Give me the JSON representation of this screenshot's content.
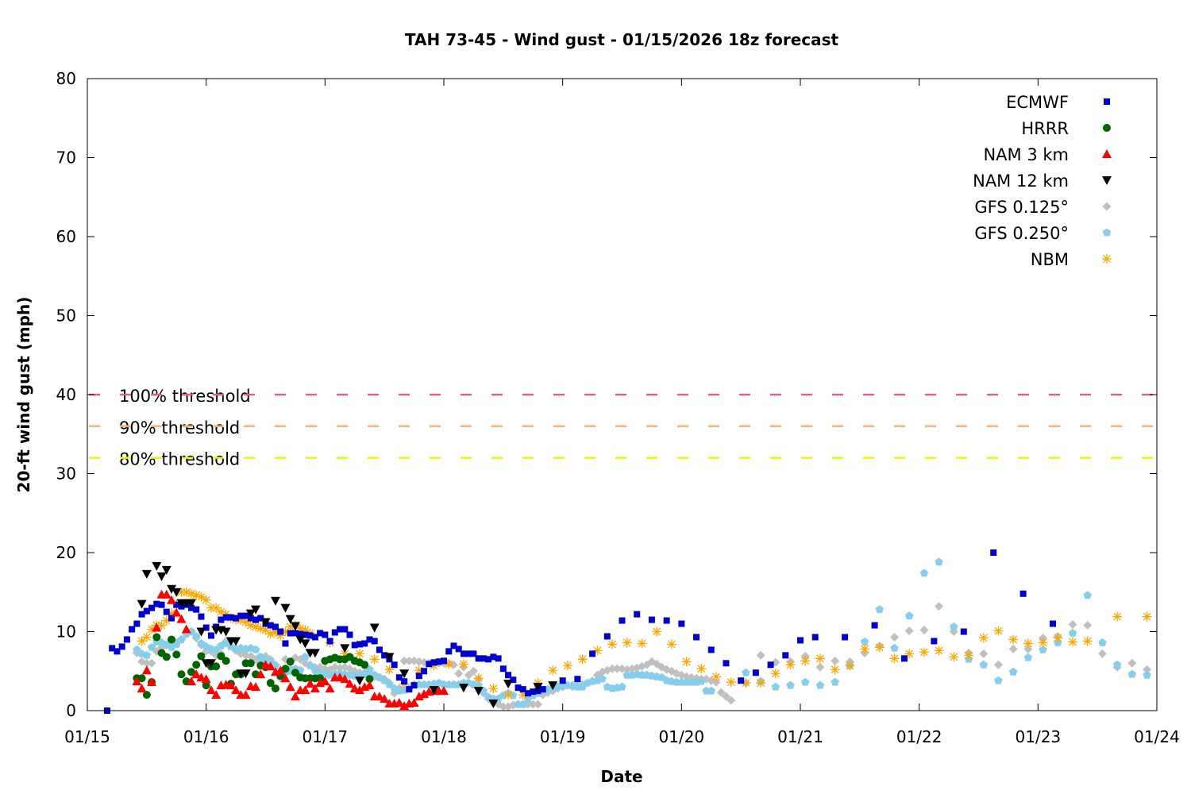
{
  "chart_data": {
    "type": "scatter",
    "title": "TAH 73-45 - Wind gust - 01/15/2026 18z forecast",
    "xlabel": "Date",
    "ylabel": "20-ft wind gust (mph)",
    "xlim": [
      "01/15 00:00",
      "01/24 00:00"
    ],
    "ylim": [
      0,
      80
    ],
    "xticks": [
      "01/15",
      "01/16",
      "01/17",
      "01/18",
      "01/19",
      "01/20",
      "01/21",
      "01/22",
      "01/23",
      "01/24"
    ],
    "yticks": [
      0,
      10,
      20,
      30,
      40,
      50,
      60,
      70,
      80
    ],
    "grid": false,
    "legend_position": "top-right",
    "thresholds": [
      {
        "label": "100% threshold",
        "value": 40,
        "color": "#d9667f"
      },
      {
        "label": "90% threshold",
        "value": 36,
        "color": "#f5b27a"
      },
      {
        "label": "80% threshold",
        "value": 32,
        "color": "#f2f200"
      }
    ],
    "series": [
      {
        "name": "ECMWF",
        "marker": "square",
        "color": "#0000cc",
        "segments": [
          {
            "start": "01/15 04:00",
            "step_hours": 1,
            "values": [
              0,
              7.9,
              7.5,
              8.1,
              9,
              10.3,
              11,
              12.2,
              12.6,
              13,
              13.5,
              13.4,
              12.5,
              11.7,
              13.4,
              13.2,
              13.4,
              13,
              12.8,
              11.9,
              10.5,
              9.5,
              10.6,
              11.5,
              11.8,
              11.8,
              11.7,
              12,
              12,
              11.7,
              11.5,
              11.7,
              11,
              10.8,
              10.6,
              10,
              8.5,
              9.8,
              9.8,
              9.7,
              9.6,
              9.5,
              9.3,
              9.8,
              9.6,
              8.8,
              9.9,
              10.3,
              10.3,
              9.6,
              8.3,
              8.4,
              8.5,
              9,
              8.8,
              7.7,
              7,
              6.5,
              5.8,
              4.2,
              3.7,
              2.7,
              3.2,
              4.4,
              5,
              5.9,
              6.1,
              6.2,
              6.3,
              7.5,
              8.2,
              7.8,
              7.2,
              7.2,
              7.2,
              6.6,
              6.6,
              6.5,
              6.8,
              6.6,
              5.3,
              4.5,
              3.9,
              2.9,
              2.7,
              2.2,
              2.4,
              2.5,
              2.7
            ]
          },
          {
            "start": "01/19 00:00",
            "step_hours": 3,
            "values": [
              3.8,
              4,
              7.2,
              9.4,
              11.4,
              12.2,
              11.5,
              11.4,
              11,
              9.3,
              7.7,
              6,
              3.8,
              4.8,
              5.8,
              7,
              8.9,
              9.3
            ]
          },
          {
            "start": "01/21 09:00",
            "step_hours": 6,
            "values": [
              9.3,
              10.8,
              6.6,
              8.8,
              10,
              20,
              14.8,
              11
            ]
          }
        ]
      },
      {
        "name": "HRRR",
        "marker": "circle",
        "color": "#006400",
        "segments": [
          {
            "start": "01/15 10:00",
            "step_hours": 1,
            "values": [
              4.1,
              4.1,
              2,
              3.6,
              9.3,
              7.3,
              6.8,
              9,
              7.1,
              4.6,
              3.7,
              4.9,
              5.8,
              6.9,
              3.2,
              5.6,
              5.6,
              6.9,
              6.3,
              3.4,
              4.6,
              4.6,
              6,
              6,
              4.6,
              5.7,
              5.5,
              3.5,
              2.8,
              4.4,
              5.3,
              6.2,
              4.8,
              4.2,
              4.1,
              4.1,
              4.1,
              4.1,
              6.3,
              6.5,
              6.7,
              6.5,
              6.5,
              6.8,
              6.3,
              6.1,
              5.8,
              4
            ]
          }
        ]
      },
      {
        "name": "NAM 3 km",
        "marker": "triangle-up",
        "color": "#ff0000",
        "segments": [
          {
            "start": "01/15 10:00",
            "step_hours": 1,
            "values": [
              3.7,
              2.8,
              5.1,
              3.6,
              10.5,
              14.7,
              14.7,
              14,
              12.4,
              11.6,
              10.3,
              3.7,
              4.6,
              4.2,
              4,
              2.6,
              2,
              3.2,
              3.3,
              3.2,
              2.6,
              2,
              2,
              3.1,
              3,
              4.6,
              5.8,
              5.6,
              4.9,
              5.1,
              4.1,
              3,
              1.8,
              2.6,
              2.6,
              3.4,
              2.8,
              3.5,
              3.7,
              2.8,
              4.2,
              4.2,
              4,
              3.4,
              2.8,
              2.6,
              3,
              3.2,
              1.8,
              1.8,
              1.5,
              0.9,
              0.9,
              1,
              0.6,
              0.9,
              1,
              1.8,
              2.1,
              2.4,
              2.5,
              2.5,
              2.5
            ]
          }
        ]
      },
      {
        "name": "NAM 12 km",
        "marker": "triangle-down",
        "color": "#000000",
        "points": [
          [
            "01/15 11:00",
            13.5
          ],
          [
            "01/15 12:00",
            17.3
          ],
          [
            "01/15 14:00",
            18.3
          ],
          [
            "01/15 15:00",
            17
          ],
          [
            "01/15 16:00",
            17.8
          ],
          [
            "01/15 17:00",
            15.4
          ],
          [
            "01/15 18:00",
            15
          ],
          [
            "01/15 19:00",
            13.6
          ],
          [
            "01/15 20:00",
            13.6
          ],
          [
            "01/15 21:00",
            13.6
          ],
          [
            "01/15 23:00",
            10
          ],
          [
            "01/16 00:00",
            6
          ],
          [
            "01/16 01:00",
            6
          ],
          [
            "01/16 02:00",
            10.2
          ],
          [
            "01/16 03:00",
            10.2
          ],
          [
            "01/16 04:00",
            10
          ],
          [
            "01/16 05:00",
            8.8
          ],
          [
            "01/16 06:00",
            8.8
          ],
          [
            "01/16 07:00",
            4.7
          ],
          [
            "01/16 08:00",
            4.7
          ],
          [
            "01/16 09:00",
            12.3
          ],
          [
            "01/16 10:00",
            12.8
          ],
          [
            "01/16 12:00",
            11.2
          ],
          [
            "01/16 14:00",
            13.9
          ],
          [
            "01/16 16:00",
            13
          ],
          [
            "01/16 17:00",
            11.6
          ],
          [
            "01/16 18:00",
            10.7
          ],
          [
            "01/16 19:00",
            9
          ],
          [
            "01/16 20:00",
            8.5
          ],
          [
            "01/16 21:00",
            7.3
          ],
          [
            "01/16 22:00",
            7.3
          ],
          [
            "01/17 04:00",
            7.9
          ],
          [
            "01/17 07:00",
            3.8
          ],
          [
            "01/17 10:00",
            10.5
          ],
          [
            "01/17 13:00",
            6.8
          ],
          [
            "01/17 16:00",
            4.7
          ],
          [
            "01/17 22:00",
            2.6
          ],
          [
            "01/18 04:00",
            2.9
          ],
          [
            "01/18 07:00",
            2.5
          ],
          [
            "01/18 10:00",
            0.9
          ],
          [
            "01/18 13:00",
            3.4
          ],
          [
            "01/18 19:00",
            3
          ],
          [
            "01/18 22:00",
            3.2
          ]
        ]
      },
      {
        "name": "GFS 0.125°",
        "marker": "diamond",
        "color": "#c0c0c0",
        "segments": [
          {
            "start": "01/15 10:00",
            "step_hours": 1,
            "values": [
              7.3,
              6.2,
              6,
              6,
              7.5,
              8,
              8.3,
              8.6,
              8.6,
              9,
              9.7,
              10,
              9.2,
              8.3,
              7.5,
              7.5,
              7,
              7.2,
              8.8,
              8.8,
              7.6,
              7.2,
              7,
              6.9,
              6.5,
              6,
              6.9,
              6.5,
              5.8,
              4.1,
              6.5,
              5.3,
              6.7,
              6.5,
              6,
              5.8,
              5.5,
              5.5,
              5.3,
              5.2,
              5.5,
              5.4,
              5.5,
              5.3,
              5,
              4.8,
              4.8,
              4.5,
              4.3,
              4.2,
              4,
              3.5,
              2.2,
              2.8,
              6.3,
              6.3,
              6.3,
              6.2,
              6.1,
              6,
              6,
              6,
              6,
              6,
              5.8,
              4.7,
              5.5,
              4.5,
              5,
              4,
              2.2,
              1.5,
              1,
              0.8,
              0.5,
              0.5,
              0.7,
              0.8,
              0.8,
              0.8,
              0.8,
              0.8,
              2,
              2.3,
              2.5,
              2.8,
              3,
              3.2,
              3,
              3.1,
              3.3,
              3.5,
              3.8,
              4.5,
              4.9,
              5.1,
              5.3,
              5.3,
              5.3,
              5.2,
              5.3,
              5.4,
              5.6,
              5.8,
              6.2,
              5.9,
              5.5,
              5.2,
              5,
              4.7,
              4.5,
              4.3,
              4.2,
              4.1,
              4,
              4,
              3.8,
              3.6,
              2.3,
              1.8
            ]
          },
          {
            "start": "01/20 10:00",
            "step_hours": 3,
            "values": [
              1.3,
              3.5,
              7,
              6.1,
              6.2,
              6.9,
              5.5,
              6.3,
              6.2,
              7.3,
              8.2,
              9.3,
              10.1,
              10.2,
              13.2,
              10,
              7.3,
              7.2,
              5.8,
              7.8,
              7.8,
              9.2,
              9.4,
              10.9,
              10.8,
              7.2,
              5.5,
              6,
              5.2
            ]
          }
        ]
      },
      {
        "name": "GFS 0.250°",
        "marker": "pentagon",
        "color": "#87ceeb",
        "segments": [
          {
            "start": "01/15 10:00",
            "step_hours": 1,
            "values": [
              7.7,
              7.2,
              7,
              8,
              8.7,
              8.6,
              8.3,
              8,
              8.4,
              9,
              9.7,
              10,
              9.4,
              8.5,
              8.1,
              7.8,
              7.7,
              8.2,
              8.5,
              8.1,
              7.8,
              7.9,
              7.8,
              7.9,
              7.7,
              6.8,
              6.5,
              6.1,
              5.7,
              4.7,
              4.9,
              5,
              5.3,
              5.1,
              6.8,
              5.7,
              5.1,
              4.7,
              4.7,
              4.5,
              4.6,
              4.7,
              4.6,
              4.5,
              4.4,
              4.4,
              4.6,
              5.2,
              4.5,
              4.2,
              3.8,
              3.3,
              2.8,
              2.5,
              2.6,
              2.8,
              3.3,
              3.3,
              3.3,
              3.3,
              3.4,
              3.5,
              3.3,
              3.3,
              3.3,
              3.3,
              3.5,
              3.5,
              3.3,
              3.2,
              2.5,
              1.7,
              1.5,
              1.5,
              1.9,
              2.2,
              1.9,
              0.8,
              0.8,
              1.5,
              1.9,
              2.2,
              2.5,
              2.7,
              2.9,
              3,
              3.1,
              3.2,
              3.2,
              3,
              3,
              3.5,
              3.7,
              3.8,
              4,
              3,
              2.8,
              2.9,
              3,
              4.5,
              4.5,
              4.6,
              4.5,
              4.5,
              4.4,
              4.3,
              4.2,
              3.8,
              3.7,
              3.6,
              3.6,
              3.6,
              3.6,
              3.6,
              3.7,
              2.5,
              2.5
            ]
          },
          {
            "start": "01/20 13:00",
            "step_hours": 3,
            "values": [
              4.8,
              3.7,
              3,
              3.2,
              3.6,
              3.2,
              3.6,
              5.7,
              8.7,
              12.8,
              7.9,
              12,
              17.4,
              18.8,
              10.6,
              6.5,
              5.8,
              3.8,
              4.9,
              6.7,
              7.7,
              8.6,
              9.8,
              14.6,
              8.6,
              5.8,
              4.6,
              4.5
            ]
          }
        ]
      },
      {
        "name": "NBM",
        "marker": "asterisk",
        "color": "#ffa500",
        "segments": [
          {
            "start": "01/15 11:00",
            "step_hours": 1,
            "values": [
              8.8,
              9.3,
              10.3,
              10.8,
              10.8,
              11.4,
              12.3,
              13.5,
              15,
              15,
              14.8,
              14.6,
              14.4,
              14,
              13,
              13,
              12.5,
              12.2,
              11.7,
              11.5,
              11.5,
              11.2,
              10.8,
              10.6,
              10.4,
              10.2,
              9.7,
              9.9,
              9.5,
              10,
              10.6,
              10.8,
              10.4,
              10.2,
              9.8
            ]
          },
          {
            "start": "01/17 01:00",
            "step_hours": 3,
            "values": [
              8.6,
              7.2,
              7.2,
              6.5,
              5.2,
              3.4,
              5.1,
              5.7,
              5.9,
              5.9,
              4.1,
              2.8,
              2,
              2,
              3.5,
              5.1,
              5.7,
              6.5,
              7.6,
              8.4,
              8.6,
              8.5,
              10,
              8.4,
              6.2,
              5.3,
              4.3,
              3.6,
              3.5,
              3.5,
              4.7,
              5.8,
              6.3,
              6.6,
              5.2,
              5.7,
              7.8,
              8,
              6.6,
              7.2,
              7.4,
              7.6,
              6.8,
              7,
              9.2,
              10.1,
              9,
              8.5,
              8.6,
              9.2,
              8.7,
              8.8
            ]
          },
          {
            "start": "01/23 16:00",
            "step_hours": 6,
            "values": [
              11.9,
              11.9
            ]
          }
        ]
      }
    ]
  }
}
